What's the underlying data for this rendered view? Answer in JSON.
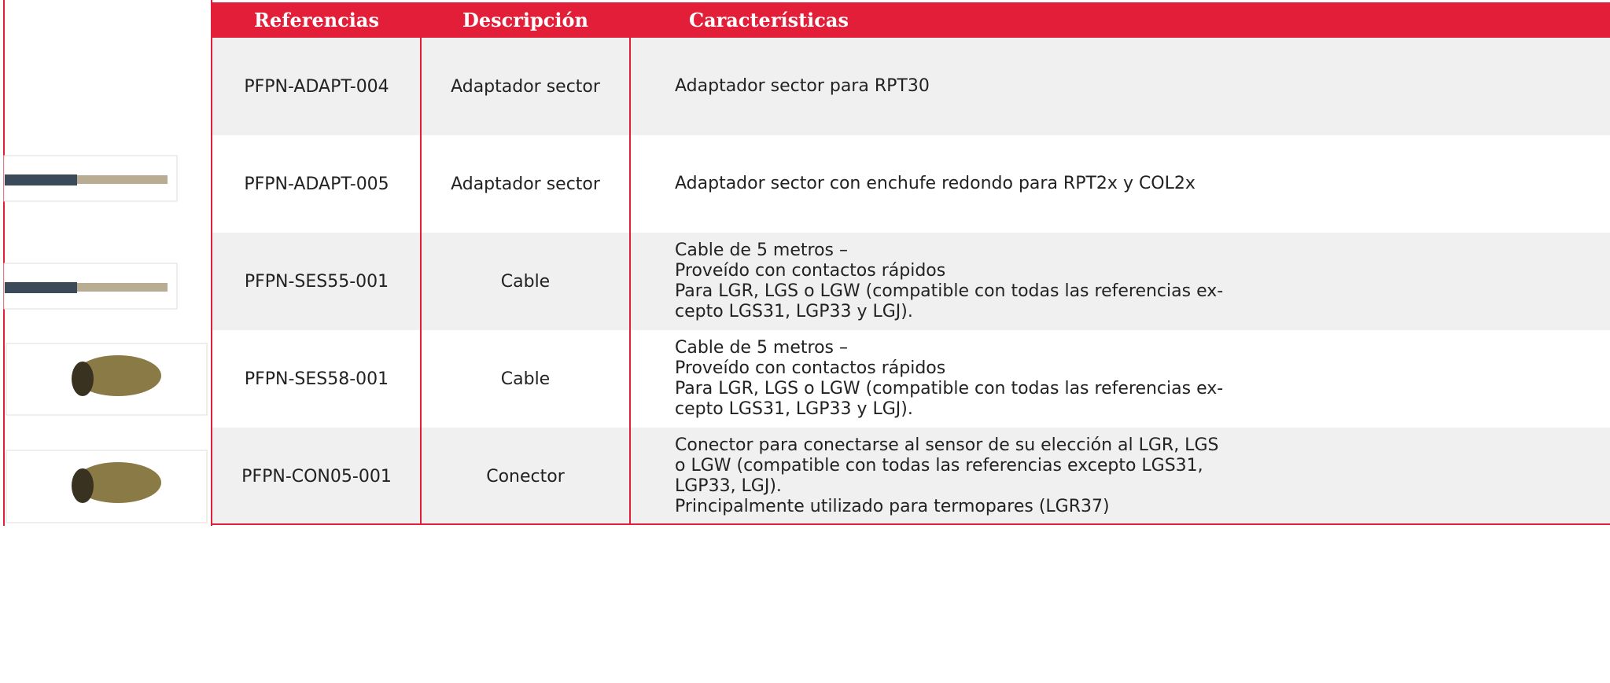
{
  "table": {
    "header": [
      "Referencias",
      "Descripción",
      "Características"
    ],
    "rows": [
      {
        "ref": "PFPN-ADAPT-004",
        "desc": "Adaptador sector",
        "lines": [
          "Adaptador sector para RPT30"
        ]
      },
      {
        "ref": "PFPN-ADAPT-005",
        "desc": "Adaptador sector",
        "lines": [
          "Adaptador sector con enchufe redondo para RPT2x y COL2x"
        ]
      },
      {
        "ref": "PFPN-SES55-001",
        "desc": "Cable",
        "lines": [
          "Cable de 5 metros –",
          "Proveído con contactos rápidos",
          "Para LGR, LGS o LGW (compatible con todas las referencias ex-",
          "cepto LGS31, LGP33 y LGJ)."
        ]
      },
      {
        "ref": "PFPN-SES58-001",
        "desc": "Cable",
        "lines": [
          "Cable de 5 metros –",
          "Proveído con contactos rápidos",
          "Para LGR, LGS o LGW (compatible con todas las referencias ex-",
          "cepto LGS31, LGP33 y LGJ)."
        ]
      },
      {
        "ref": "PFPN-CON05-001",
        "desc": "Conector",
        "lines": [
          "Conector para conectarse al sensor de su elección al LGR, LGS",
          "o LGW (compatible con todas las referencias excepto LGS31,",
          "LGP33, LGJ).",
          "Principalmente utilizado para termopares (LGR37)"
        ]
      }
    ]
  }
}
